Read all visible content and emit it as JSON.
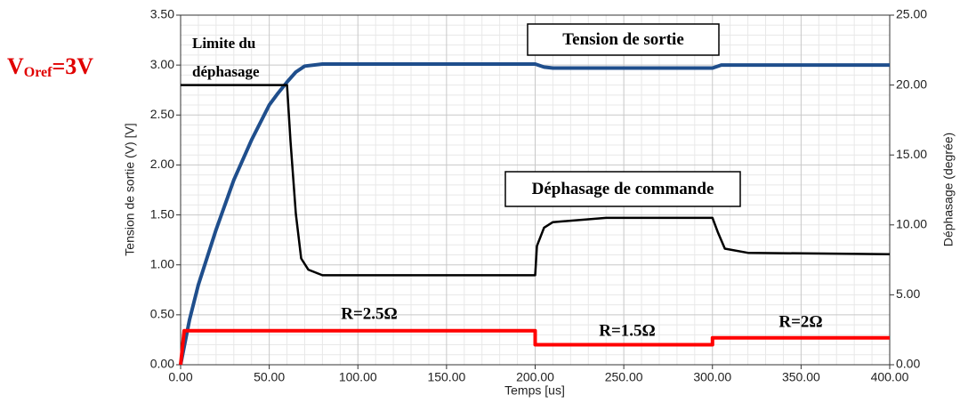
{
  "chart_data": {
    "type": "line",
    "xlabel": "Temps [us]",
    "ylabel": "Tension de sortie (V) [V]",
    "y2label": "Déphasage (degrée)",
    "xlim": [
      0,
      400
    ],
    "xticks": [
      {
        "value": 0,
        "label": "0.00"
      },
      {
        "value": 50,
        "label": "50.00"
      },
      {
        "value": 100,
        "label": "100.00"
      },
      {
        "value": 150,
        "label": "150.00"
      },
      {
        "value": 200,
        "label": "200.00"
      },
      {
        "value": 250,
        "label": "250.00"
      },
      {
        "value": 300,
        "label": "300.00"
      },
      {
        "value": 350,
        "label": "350.00"
      },
      {
        "value": 400,
        "label": "400.00"
      }
    ],
    "ylim": [
      0,
      3.5
    ],
    "yticks": [
      {
        "value": 0,
        "label": "0.00"
      },
      {
        "value": 0.5,
        "label": "0.50"
      },
      {
        "value": 1,
        "label": "1.00"
      },
      {
        "value": 1.5,
        "label": "1.50"
      },
      {
        "value": 2,
        "label": "2.00"
      },
      {
        "value": 2.5,
        "label": "2.50"
      },
      {
        "value": 3,
        "label": "3.00"
      },
      {
        "value": 3.5,
        "label": "3.50"
      }
    ],
    "y2lim": [
      0,
      25
    ],
    "y2ticks": [
      {
        "value": 0,
        "label": "0.00"
      },
      {
        "value": 5,
        "label": "5.00"
      },
      {
        "value": 10,
        "label": "10.00"
      },
      {
        "value": 15,
        "label": "15.00"
      },
      {
        "value": 20,
        "label": "20.00"
      },
      {
        "value": 25,
        "label": "25.00"
      }
    ],
    "grid": true,
    "series": [
      {
        "color": "#1f4e8c",
        "x": [
          0,
          5,
          10,
          20,
          30,
          40,
          50,
          55,
          60,
          65,
          70,
          80,
          200,
          205,
          210,
          300,
          305,
          400
        ],
        "values": [
          0,
          0.45,
          0.8,
          1.35,
          1.85,
          2.25,
          2.6,
          2.72,
          2.83,
          2.93,
          2.99,
          3.01,
          3.01,
          2.98,
          2.97,
          2.97,
          3.0,
          3.0
        ]
      },
      {
        "color": "#000000",
        "axis": "y2",
        "x": [
          0,
          60,
          62,
          65,
          68,
          72,
          80,
          200,
          201,
          205,
          210,
          240,
          300,
          303,
          307,
          320,
          400
        ],
        "values": [
          20,
          20,
          16,
          10.8,
          7.6,
          6.8,
          6.4,
          6.4,
          8.5,
          9.8,
          10.2,
          10.5,
          10.5,
          9.5,
          8.3,
          8.0,
          7.9
        ]
      },
      {
        "color": "#ff0000",
        "x": [
          0,
          2,
          200,
          200,
          300,
          300,
          400
        ],
        "values": [
          0,
          0.34,
          0.34,
          0.2,
          0.2,
          0.27,
          0.27
        ]
      }
    ],
    "annotations": [
      "Tension de sortie",
      "Déphasage de commande",
      "R=2.5Ω",
      "R=1.5Ω",
      "R=2Ω"
    ],
    "limit_label": [
      "Limite du",
      "déphasage"
    ],
    "vref_label": {
      "main": "V",
      "sub": "Oref",
      "rest": "=3V"
    }
  }
}
